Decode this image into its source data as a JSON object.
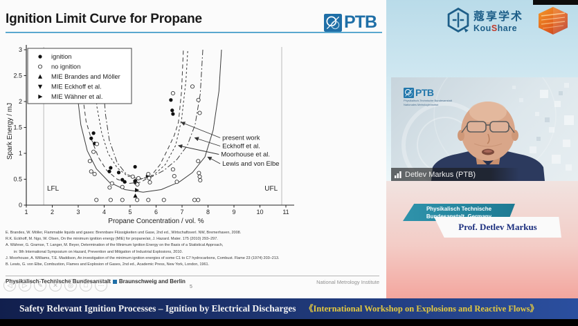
{
  "slide": {
    "title": "Ignition Limit Curve for Propane",
    "ptb_logo": "PTB",
    "references": [
      "E. Brandes, W. Möller, Flammable liquids and gases: Brennbare Flüssigkeiten und Gase, 2nd ed., Wirtschaftsverl. NW, Bremerhaven, 2008.",
      "R.K. Eckhoff, M. Ngo, W. Olsen, On the minimum ignition energy (MIE) for propane/air, J. Hazard. Mater. 175 (2010) 293–297.",
      "A. Wähner, G. Gramse, T. Langer, M. Beyer, Determination of the Minimum Ignition Energy on the Basis of a Statistical Approach,",
      "in: 9th International Symposium on Hazard, Prevention and Mitigation of Industrial Explosions, 2010.",
      "J. Moorhouse, A. Williams, T.E. Maddison, An investigation of the minimum ignition energies of some C1 to C7 hydrocarbons, Combust. Flame 23 (1974) 203–213.",
      "B. Lewis, G. von Elbe, Combustion, Flames and Explosion of Gases, 2nd ed., Academic Press, New York, London, 1961."
    ],
    "footer": {
      "left1": "Physikalisch-Technische Bundesanstalt",
      "left2": "Braunschweig and Berlin",
      "page": "5",
      "right": "National Metrology Institute"
    },
    "player_controls": [
      {
        "name": "previous",
        "glyph": "◁"
      },
      {
        "name": "play",
        "glyph": "▷"
      },
      {
        "name": "pen",
        "glyph": "✎"
      },
      {
        "name": "erase",
        "glyph": "✕"
      },
      {
        "name": "zoom",
        "glyph": "◎"
      },
      {
        "name": "frame",
        "glyph": "□"
      },
      {
        "name": "more",
        "glyph": "⋯"
      }
    ]
  },
  "chart_data": {
    "type": "scatter",
    "title": "",
    "xlabel": "Propane Concentration / vol. %",
    "ylabel": "Spark Energy / mJ",
    "xlim": [
      1,
      11
    ],
    "ylim": [
      0,
      3
    ],
    "xticks": [
      1,
      2,
      3,
      4,
      5,
      6,
      7,
      8,
      9,
      10,
      11
    ],
    "yticks": [
      0,
      0.5,
      1,
      1.5,
      2,
      2.5,
      3
    ],
    "grid": false,
    "legend_position": "upper-left",
    "series": [
      {
        "name": "ignition",
        "marker": "circle-filled",
        "points": [
          [
            3.5,
            1.29
          ],
          [
            3.59,
            1.39
          ],
          [
            3.63,
            1.19
          ],
          [
            4.2,
            0.65
          ],
          [
            4.25,
            0.72
          ],
          [
            4.56,
            0.63
          ],
          [
            4.7,
            0.49
          ],
          [
            4.79,
            0.45
          ],
          [
            5.19,
            0.74
          ],
          [
            5.2,
            0.47
          ],
          [
            5.23,
            0.43
          ],
          [
            5.67,
            0.56
          ],
          [
            6.57,
            2.03
          ],
          [
            6.62,
            1.83
          ],
          [
            6.65,
            1.76
          ]
        ]
      },
      {
        "name": "no ignition",
        "marker": "circle-open",
        "points": [
          [
            3.45,
            0.85
          ],
          [
            3.5,
            0.65
          ],
          [
            3.59,
            1.03
          ],
          [
            3.63,
            0.6
          ],
          [
            3.72,
            1.18
          ],
          [
            4.21,
            0.34
          ],
          [
            4.3,
            0.42
          ],
          [
            4.7,
            0.35
          ],
          [
            5.1,
            0.55
          ],
          [
            5.2,
            0.44
          ],
          [
            5.28,
            0.4
          ],
          [
            5.32,
            0.52
          ],
          [
            5.7,
            0.6
          ],
          [
            5.73,
            0.52
          ],
          [
            5.76,
            0.44
          ],
          [
            6.65,
            0.69
          ],
          [
            6.7,
            0.56
          ],
          [
            6.8,
            0.45
          ],
          [
            7.62,
            0.85
          ],
          [
            7.65,
            0.62
          ],
          [
            7.68,
            0.55
          ],
          [
            7.7,
            0.48
          ],
          [
            6.65,
            2.16
          ],
          [
            7.4,
            2.29
          ],
          [
            7.63,
            2.03
          ],
          [
            7.68,
            1.78
          ],
          [
            3.7,
            0.1
          ],
          [
            4.25,
            0.1
          ],
          [
            4.7,
            0.1
          ],
          [
            5.27,
            0.1
          ],
          [
            5.7,
            0.1
          ],
          [
            6.3,
            0.1
          ],
          [
            7.48,
            0.1
          ],
          [
            7.62,
            0.1
          ]
        ]
      },
      {
        "name": "MIE Brandes and Möller",
        "marker": "triangle-up",
        "points": [
          [
            5.2,
            0.18
          ]
        ]
      },
      {
        "name": "MIE Eckhoff et al.",
        "marker": "triangle-down",
        "points": [
          [
            5.19,
            0.44
          ]
        ]
      },
      {
        "name": "MIE Wähner et al.",
        "marker": "triangle-right",
        "points": [
          [
            5.26,
            0.29
          ]
        ]
      }
    ],
    "curves": [
      {
        "name": "present work",
        "style": "dashed",
        "points": [
          [
            3.05,
            3.0
          ],
          [
            3.15,
            2.2
          ],
          [
            3.3,
            1.62
          ],
          [
            3.5,
            1.28
          ],
          [
            3.78,
            0.92
          ],
          [
            4.1,
            0.67
          ],
          [
            4.5,
            0.5
          ],
          [
            4.95,
            0.42
          ],
          [
            5.4,
            0.44
          ],
          [
            5.8,
            0.56
          ],
          [
            6.15,
            0.78
          ],
          [
            6.45,
            1.08
          ],
          [
            6.7,
            1.35
          ],
          [
            6.86,
            1.6
          ],
          [
            6.98,
            2.2
          ],
          [
            7.05,
            3.0
          ]
        ]
      },
      {
        "name": "Eckhoff et al.",
        "style": "dashdot",
        "points": [
          [
            3.95,
            2.4
          ],
          [
            4.05,
            1.75
          ],
          [
            4.2,
            1.25
          ],
          [
            4.5,
            0.82
          ],
          [
            4.85,
            0.6
          ],
          [
            5.3,
            0.5
          ],
          [
            5.8,
            0.54
          ],
          [
            6.3,
            0.67
          ],
          [
            6.8,
            0.88
          ],
          [
            7.2,
            1.15
          ],
          [
            7.5,
            1.55
          ],
          [
            7.7,
            2.15
          ],
          [
            7.8,
            3.0
          ]
        ]
      },
      {
        "name": "Moorhouse et al.",
        "style": "dashed-short",
        "points": [
          [
            3.58,
            2.7
          ],
          [
            3.72,
            1.9
          ],
          [
            3.9,
            1.4
          ],
          [
            4.15,
            1.0
          ],
          [
            4.5,
            0.72
          ],
          [
            4.9,
            0.56
          ],
          [
            5.4,
            0.5
          ],
          [
            5.9,
            0.58
          ],
          [
            6.35,
            0.78
          ],
          [
            6.75,
            1.15
          ],
          [
            6.98,
            1.65
          ],
          [
            7.15,
            2.4
          ],
          [
            7.22,
            3.0
          ]
        ]
      },
      {
        "name": "Lewis and von Elbe",
        "style": "solid",
        "points": [
          [
            2.85,
            3.0
          ],
          [
            2.95,
            2.2
          ],
          [
            3.1,
            1.55
          ],
          [
            3.35,
            1.05
          ],
          [
            3.7,
            0.7
          ],
          [
            4.2,
            0.44
          ],
          [
            4.8,
            0.3
          ],
          [
            5.5,
            0.25
          ],
          [
            6.2,
            0.3
          ],
          [
            6.9,
            0.45
          ],
          [
            7.4,
            0.63
          ],
          [
            7.88,
            0.93
          ],
          [
            8.2,
            1.45
          ],
          [
            8.42,
            2.2
          ],
          [
            8.52,
            3.0
          ]
        ]
      }
    ],
    "annotations": [
      {
        "label": "present work",
        "lx": 8.55,
        "ly": 1.3,
        "tx": 6.86,
        "ty": 1.6
      },
      {
        "label": "Eckhoff et al.",
        "lx": 8.55,
        "ly": 1.14,
        "tx": 7.38,
        "ty": 1.3
      },
      {
        "label": "Moorhouse et al.",
        "lx": 8.5,
        "ly": 0.98,
        "tx": 6.75,
        "ty": 1.15
      },
      {
        "label": "Lewis and von Elbe",
        "lx": 8.55,
        "ly": 0.8,
        "tx": 7.88,
        "ty": 0.93
      }
    ],
    "limits": [
      {
        "label": "LFL",
        "x": 1.67,
        "label_x": 1.8,
        "label_y": 0.28
      },
      {
        "label": "UFL",
        "x": 10.84,
        "label_x": 10.18,
        "label_y": 0.28
      }
    ]
  },
  "right_panel": {
    "koushare": {
      "cn": "蔻享学术",
      "en_parts": [
        "Kou",
        "S",
        "hare"
      ]
    },
    "video": {
      "ptb_logo": "PTB",
      "ptb_sub1": "Physikalisch-Technische Bundesanstalt",
      "ptb_sub2": "Nationales Metrologieinstitut",
      "caption": "Detlev Markus (PTB)"
    },
    "nameplate": {
      "org_line1": "Physikalisch Technische",
      "org_line2": "Bundesanstalt, Germany",
      "name": "Prof. Detlev Markus"
    }
  },
  "banner": {
    "left": "Safety Relevant Ignition Processes – Ignition by Electrical Discharges",
    "right": "《International Workshop on Explosions and Reactive Flows》"
  },
  "colors": {
    "ptb_blue": "#1f6fa7",
    "title_underline": "#5aa8cf",
    "koushare_blue": "#1d5e88",
    "koushare_red": "#c0392b",
    "banner_navy": "#111f4d",
    "banner_blue": "#2b4f9f",
    "banner_yellow": "#e4c93f",
    "nameplate_teal": "#1e7a93",
    "pink_bottom": "#f3a69e"
  }
}
